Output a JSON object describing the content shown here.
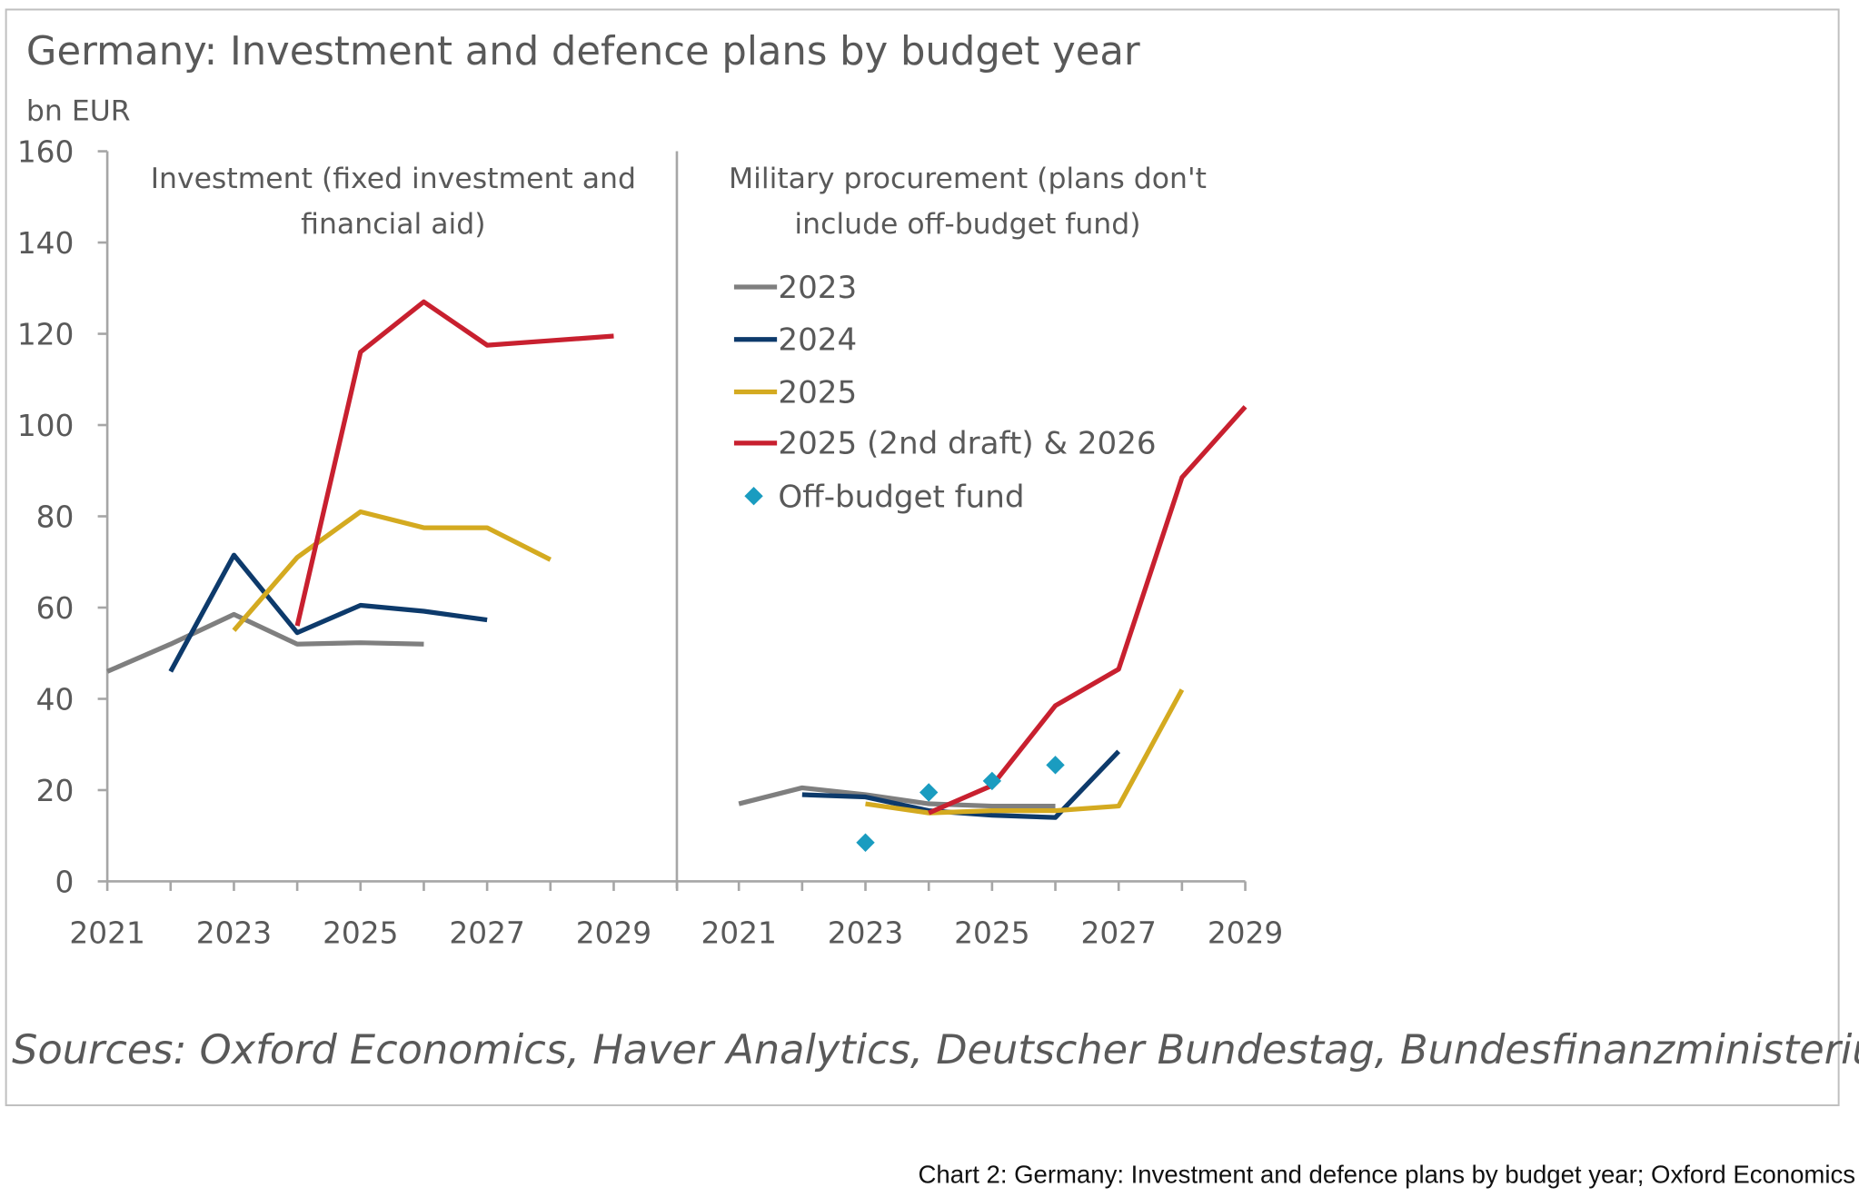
{
  "chart_data": {
    "type": "line",
    "title": "Germany: Investment and defence plans by budget year",
    "ylabel": "bn EUR",
    "ylim": [
      0,
      160
    ],
    "yticks": [
      "0",
      "20",
      "40",
      "60",
      "80",
      "100",
      "120",
      "140",
      "160"
    ],
    "xticks": [
      "2021",
      "2023",
      "2025",
      "2027",
      "2029"
    ],
    "xlim": [
      2021,
      2029
    ],
    "legend": {
      "placement": "right-panel-top-left",
      "items": [
        "2023",
        "2024",
        "2025",
        "2025 (2nd draft) & 2026",
        "Off-budget fund"
      ]
    },
    "colors": {
      "2023": "#7f7f7f",
      "2024": "#0d3a6b",
      "2025": "#d4aa20",
      "2025 (2nd draft) & 2026": "#c8202f",
      "Off-budget fund": "#1a9cc0"
    },
    "panels": [
      {
        "title_line1": "Investment (fixed investment and",
        "title_line2": "financial aid)",
        "series": [
          {
            "name": "2023",
            "x": [
              2021,
              2022,
              2023,
              2024,
              2025,
              2026
            ],
            "values": [
              46,
              52,
              58.5,
              52,
              52.3,
              52
            ]
          },
          {
            "name": "2024",
            "x": [
              2022,
              2023,
              2024,
              2025,
              2026,
              2027
            ],
            "values": [
              46,
              71.5,
              54.5,
              60.5,
              59.2,
              57.3
            ]
          },
          {
            "name": "2025",
            "x": [
              2023,
              2024,
              2025,
              2026,
              2027,
              2028
            ],
            "values": [
              55,
              71,
              81,
              77.5,
              77.5,
              70.5
            ]
          },
          {
            "name": "2025 (2nd draft) & 2026",
            "x": [
              2024,
              2025,
              2026,
              2027,
              2028,
              2029
            ],
            "values": [
              56,
              116,
              127,
              117.5,
              118.5,
              119.5
            ]
          }
        ],
        "points": []
      },
      {
        "title_line1": "Military procurement (plans don't",
        "title_line2": "include off-budget fund)",
        "series": [
          {
            "name": "2023",
            "x": [
              2021,
              2022,
              2023,
              2024,
              2025,
              2026
            ],
            "values": [
              17,
              20.5,
              19,
              17,
              16.5,
              16.5
            ]
          },
          {
            "name": "2024",
            "x": [
              2022,
              2023,
              2024,
              2025,
              2026,
              2027
            ],
            "values": [
              19,
              18.5,
              15.5,
              14.5,
              14,
              28.5
            ]
          },
          {
            "name": "2025",
            "x": [
              2023,
              2024,
              2025,
              2026,
              2027,
              2028
            ],
            "values": [
              17,
              15,
              15.5,
              15.5,
              16.5,
              42
            ]
          },
          {
            "name": "2025 (2nd draft) & 2026",
            "x": [
              2024,
              2025,
              2026,
              2027,
              2028,
              2029
            ],
            "values": [
              15,
              21,
              38.5,
              46.5,
              88.5,
              104
            ]
          }
        ],
        "points": [
          {
            "name": "Off-budget fund",
            "x": [
              2023,
              2024,
              2025,
              2026
            ],
            "values": [
              8.5,
              19.5,
              22,
              25.5
            ]
          }
        ]
      }
    ],
    "source": "Sources: Oxford Economics, Haver Analytics, Deutscher Bundestag, Bundesfinanzministerium"
  },
  "caption": "Chart 2: Germany: Investment and defence plans by budget year; Oxford Economics"
}
